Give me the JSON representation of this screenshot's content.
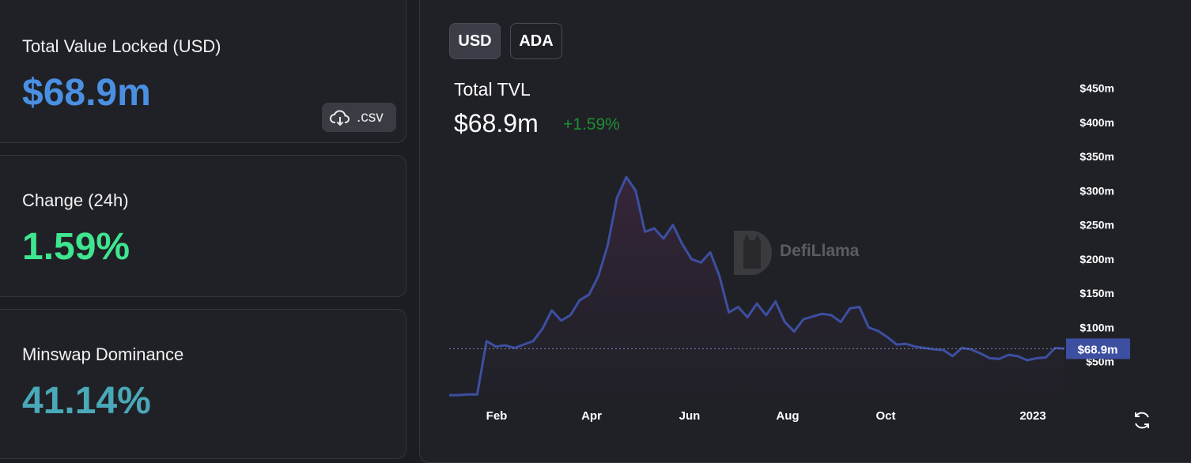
{
  "stats": {
    "tvl": {
      "label": "Total Value Locked (USD)",
      "value": "$68.9m",
      "color": "#4a90e2",
      "csv_label": ".csv"
    },
    "change": {
      "label": "Change (24h)",
      "value": "1.59%",
      "color": "#3ee68f"
    },
    "dominance": {
      "label": "Minswap Dominance",
      "value": "41.14%",
      "color": "#4aa9b8"
    }
  },
  "chart_panel": {
    "toggles": [
      "USD",
      "ADA"
    ],
    "active_toggle": "USD",
    "title": "Total TVL",
    "current_value": "$68.9m",
    "change": "+1.59%",
    "watermark": "DefiLlama",
    "line_color": "#3d4fa1"
  },
  "chart_data": {
    "type": "area",
    "title": "Total TVL",
    "x_labels": [
      "Feb",
      "Apr",
      "Jun",
      "Aug",
      "Oct",
      "2023"
    ],
    "y_ticks": [
      "$50m",
      "$100m",
      "$150m",
      "$200m",
      "$250m",
      "$300m",
      "$350m",
      "$400m",
      "$450m"
    ],
    "ylim": [
      0,
      475
    ],
    "current_label": "$68.9m",
    "current_value": 68.9,
    "series": [
      {
        "values": [
          1,
          1,
          2,
          2,
          80,
          72,
          74,
          70,
          75,
          80,
          98,
          125,
          110,
          118,
          140,
          148,
          175,
          220,
          290,
          320,
          300,
          240,
          245,
          230,
          250,
          222,
          200,
          195,
          210,
          175,
          122,
          130,
          115,
          135,
          118,
          138,
          108,
          94,
          112,
          116,
          120,
          118,
          108,
          128,
          130,
          100,
          95,
          86,
          75,
          76,
          72,
          70,
          68,
          67,
          58,
          70,
          68,
          62,
          55,
          54,
          60,
          58,
          52,
          55,
          56,
          70,
          69
        ]
      }
    ]
  }
}
